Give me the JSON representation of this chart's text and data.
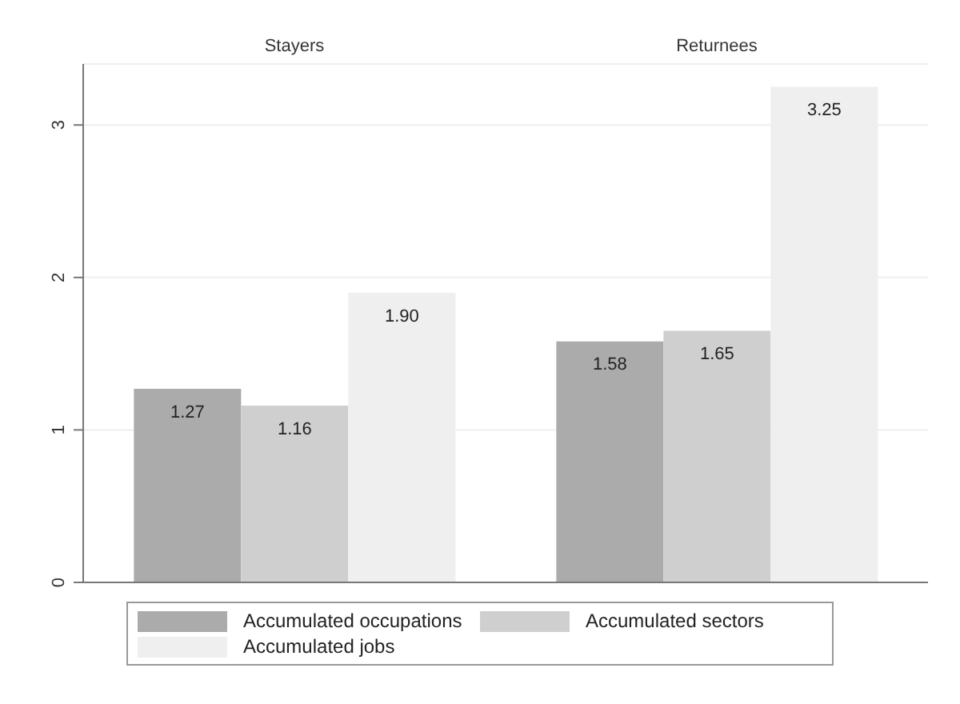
{
  "chart_data": {
    "type": "bar",
    "categories": [
      "Stayers",
      "Returnees"
    ],
    "ylim": [
      0,
      3.4
    ],
    "yticks": [
      0,
      1,
      2,
      3
    ],
    "grid": "y",
    "legend": "bottom",
    "series": [
      {
        "name": "Accumulated occupations",
        "color": "#ababab",
        "values": [
          1.27,
          1.58
        ],
        "value_labels": [
          "1.27",
          "1.58"
        ]
      },
      {
        "name": "Accumulated sectors",
        "color": "#cfcfcf",
        "values": [
          1.16,
          1.65
        ],
        "value_labels": [
          "1.16",
          "1.65"
        ]
      },
      {
        "name": "Accumulated jobs",
        "color": "#efefef",
        "values": [
          1.9,
          3.25
        ],
        "value_labels": [
          "1.90",
          "3.25"
        ]
      }
    ]
  }
}
